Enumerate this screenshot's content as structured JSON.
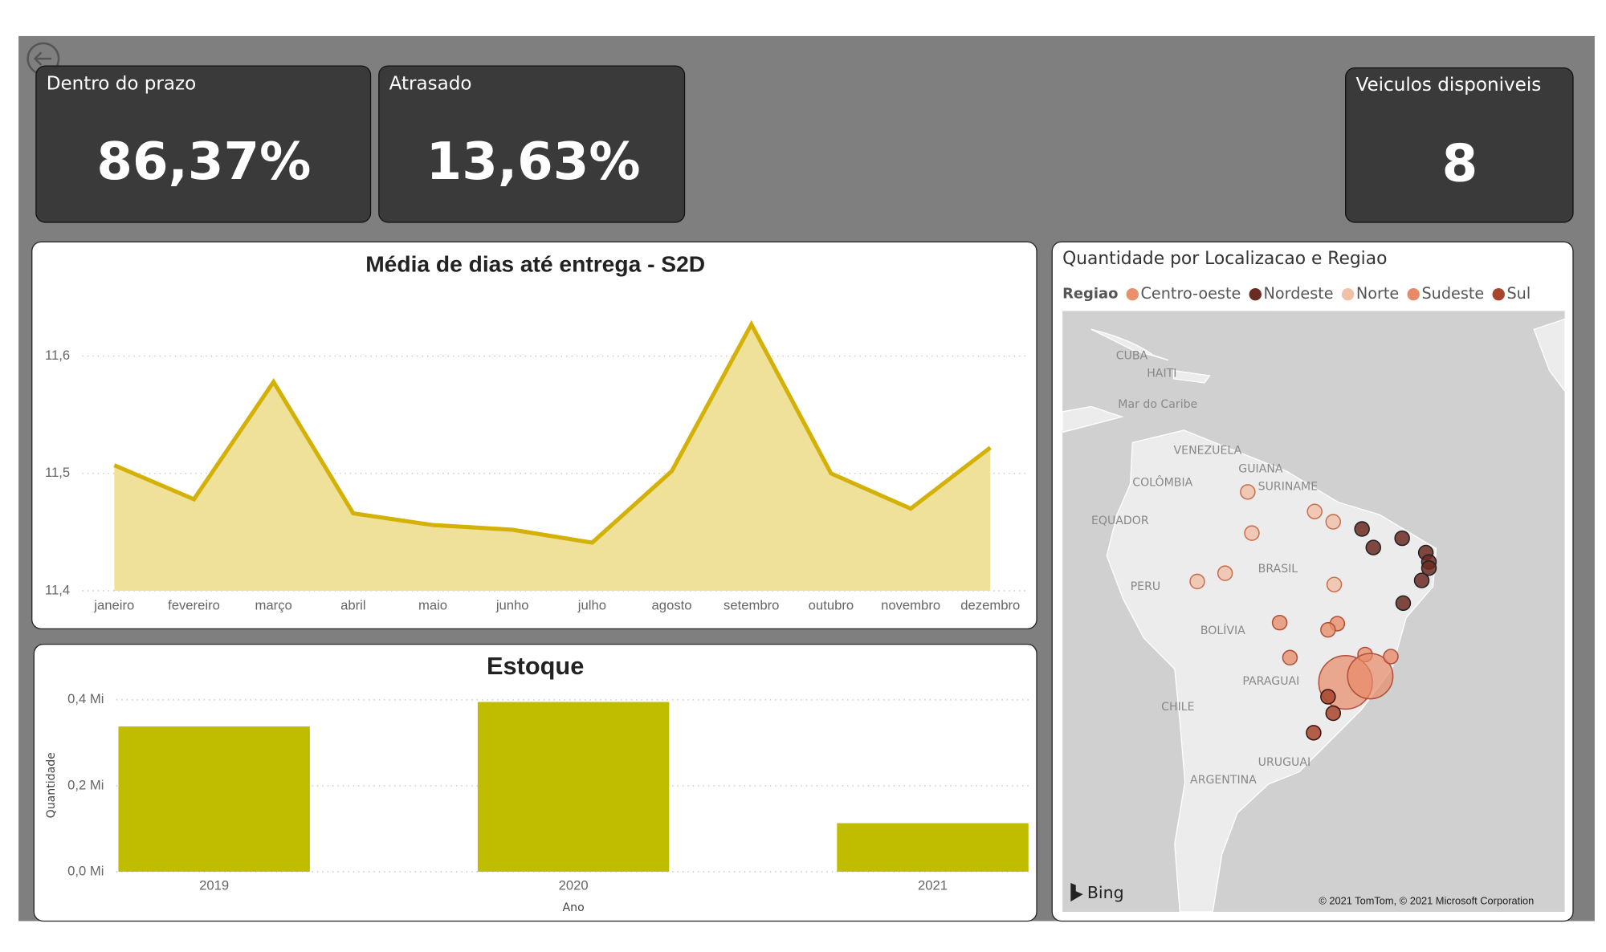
{
  "cards": [
    {
      "title": "Dentro do prazo",
      "value": "86,37%"
    },
    {
      "title": "Atrasado",
      "value": "13,63%"
    },
    {
      "title": "Veiculos disponiveis",
      "value": "8"
    }
  ],
  "chart_data": [
    {
      "type": "line",
      "title": "Média de dias até entrega - S2D",
      "categories": [
        "janeiro",
        "fevereiro",
        "março",
        "abril",
        "maio",
        "junho",
        "julho",
        "agosto",
        "setembro",
        "outubro",
        "novembro",
        "dezembro"
      ],
      "values": [
        11.507,
        11.478,
        11.578,
        11.466,
        11.456,
        11.452,
        11.441,
        11.502,
        11.627,
        11.5,
        11.47,
        11.522
      ],
      "color": "#d4b106",
      "area_color": "#efe09a",
      "ylim": [
        11.4,
        11.64
      ],
      "yticks": [
        {
          "value": 11.4,
          "label": "11,4"
        },
        {
          "value": 11.5,
          "label": "11,5"
        },
        {
          "value": 11.6,
          "label": "11,6"
        }
      ],
      "grid": true
    },
    {
      "type": "bar",
      "title": "Estoque",
      "x_label": "Ano",
      "y_label": "Quantidade",
      "categories": [
        "2019",
        "2020",
        "2021"
      ],
      "values": [
        0.338,
        0.395,
        0.113
      ],
      "color": "#c0bc00",
      "ylim": [
        0,
        0.4
      ],
      "yticks": [
        {
          "value": 0,
          "label": "0,0 Mi"
        },
        {
          "value": 0.2,
          "label": "0,2 Mi"
        },
        {
          "value": 0.4,
          "label": "0,4 Mi"
        }
      ],
      "grid": true
    }
  ],
  "map": {
    "title": "Quantidade por Localizacao e Regiao",
    "legend_title": "Regiao",
    "legend": [
      {
        "name": "Centro-oeste",
        "color": "#e8906c"
      },
      {
        "name": "Nordeste",
        "color": "#6b2a22"
      },
      {
        "name": "Norte",
        "color": "#f0c0a8"
      },
      {
        "name": "Sudeste",
        "color": "#e88a6a"
      },
      {
        "name": "Sul",
        "color": "#a8452c"
      }
    ],
    "places": [
      "Mar do Caribe",
      "CUBA",
      "HAITI",
      "VENEZUELA",
      "COLÔMBIA",
      "EQUADOR",
      "GUIANA",
      "SURINAME",
      "BRASIL",
      "PERU",
      "BOLÍVIA",
      "PARAGUAI",
      "CHILE",
      "URUGUAI",
      "ARGENTINA"
    ],
    "provider": "Bing",
    "attribution": "© 2021 TomTom, © 2021 Microsoft Corporation"
  }
}
